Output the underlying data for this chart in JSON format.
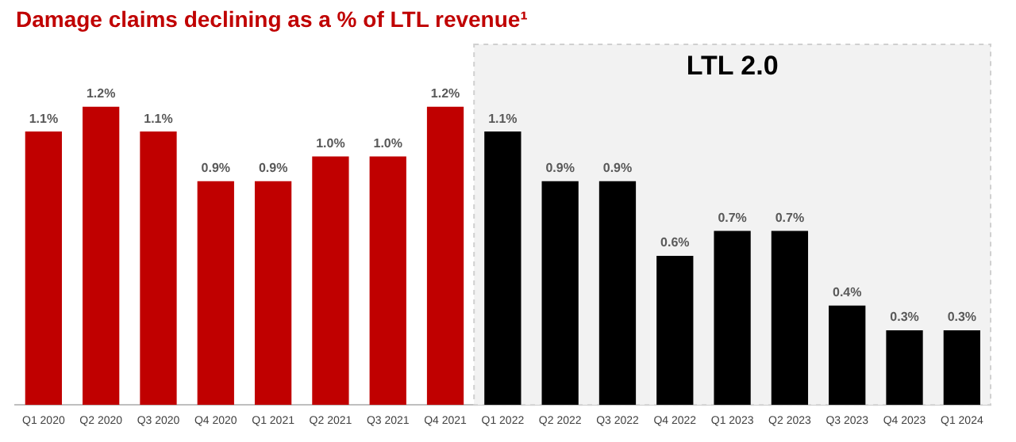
{
  "chart_data": {
    "type": "bar",
    "title": "Damage claims declining as a % of LTL revenue¹",
    "categories": [
      "Q1 2020",
      "Q2 2020",
      "Q3 2020",
      "Q4 2020",
      "Q1 2021",
      "Q2 2021",
      "Q3 2021",
      "Q4 2021",
      "Q1 2022",
      "Q2 2022",
      "Q3 2022",
      "Q4 2022",
      "Q1 2023",
      "Q2 2023",
      "Q3 2023",
      "Q4 2023",
      "Q1 2024"
    ],
    "values": [
      1.1,
      1.2,
      1.1,
      0.9,
      0.9,
      1.0,
      1.0,
      1.2,
      1.1,
      0.9,
      0.9,
      0.6,
      0.7,
      0.7,
      0.4,
      0.3,
      0.3
    ],
    "value_labels": [
      "1.1%",
      "1.2%",
      "1.1%",
      "0.9%",
      "0.9%",
      "1.0%",
      "1.0%",
      "1.2%",
      "1.1%",
      "0.9%",
      "0.9%",
      "0.6%",
      "0.7%",
      "0.7%",
      "0.4%",
      "0.3%",
      "0.3%"
    ],
    "colors": [
      "#c00000",
      "#c00000",
      "#c00000",
      "#c00000",
      "#c00000",
      "#c00000",
      "#c00000",
      "#c00000",
      "#000000",
      "#000000",
      "#000000",
      "#000000",
      "#000000",
      "#000000",
      "#000000",
      "#000000",
      "#000000"
    ],
    "bands": [
      {
        "axis": "x",
        "from": "Q1 2022",
        "to": "Q1 2024",
        "label": "LTL 2.0",
        "color": "#f2f2f2"
      }
    ],
    "grid": false,
    "legend": false,
    "tick_labels": "x"
  }
}
